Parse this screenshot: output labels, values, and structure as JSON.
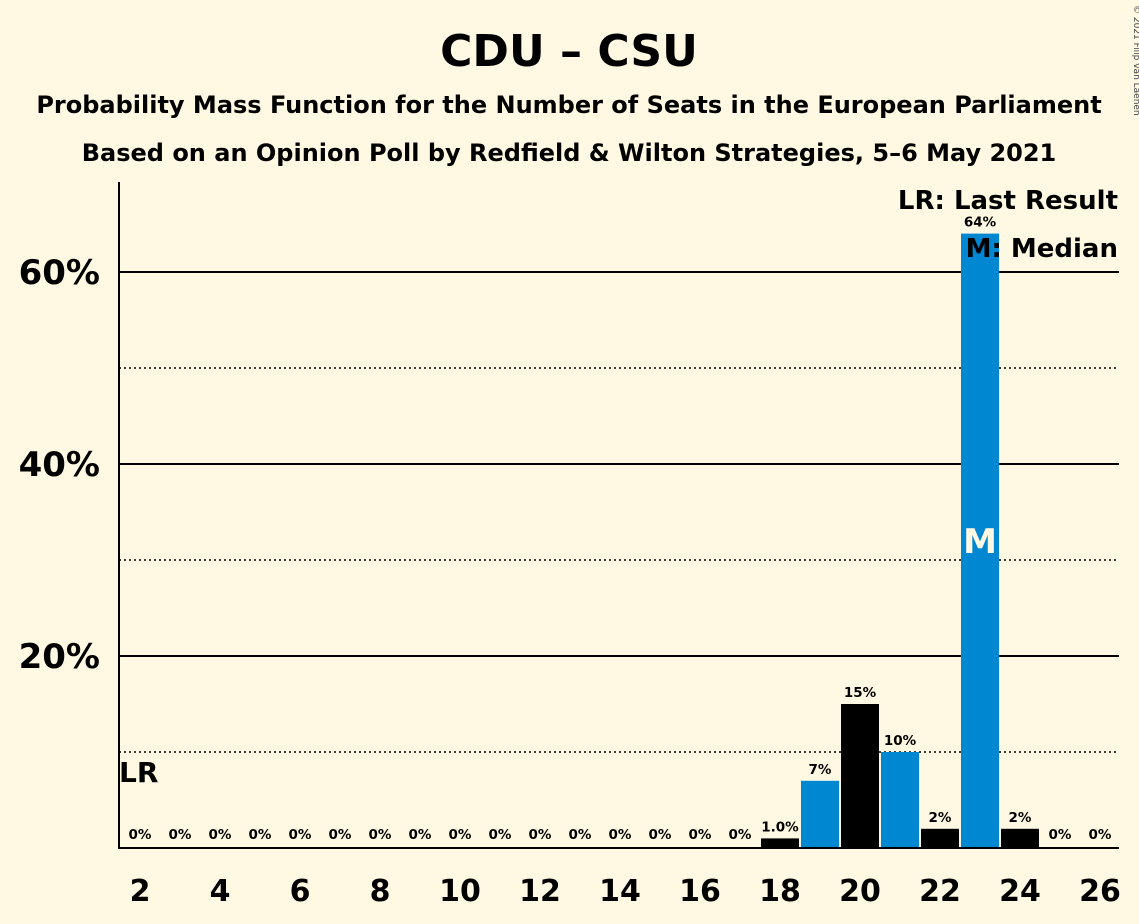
{
  "title": "CDU – CSU",
  "subtitle1": "Probability Mass Function for the Number of Seats in the European Parliament",
  "subtitle2": "Based on an Opinion Poll by Redfield & Wilton Strategies, 5–6 May 2021",
  "copyright": "© 2021 Filip van Laenen",
  "legend": {
    "last_result": "LR: Last Result",
    "median": "M: Median"
  },
  "lr_marker": "LR",
  "median_marker": "M",
  "colors": {
    "background": "#FFF9E3",
    "primary": "#0087D1",
    "secondary": "#000000"
  },
  "chart_data": {
    "type": "bar",
    "x": [
      2,
      3,
      4,
      5,
      6,
      7,
      8,
      9,
      10,
      11,
      12,
      13,
      14,
      15,
      16,
      17,
      18,
      19,
      20,
      21,
      22,
      23,
      24,
      25,
      26
    ],
    "values": [
      0,
      0,
      0,
      0,
      0,
      0,
      0,
      0,
      0,
      0,
      0,
      0,
      0,
      0,
      0,
      0,
      1.0,
      7,
      15,
      10,
      2,
      64,
      2,
      0,
      0
    ],
    "labels": [
      "0%",
      "0%",
      "0%",
      "0%",
      "0%",
      "0%",
      "0%",
      "0%",
      "0%",
      "0%",
      "0%",
      "0%",
      "0%",
      "0%",
      "0%",
      "0%",
      "1.0%",
      "7%",
      "15%",
      "10%",
      "2%",
      "64%",
      "2%",
      "0%",
      "0%"
    ],
    "x_tick_labels": [
      "2",
      "4",
      "6",
      "8",
      "10",
      "12",
      "14",
      "16",
      "18",
      "20",
      "22",
      "24",
      "26"
    ],
    "y_tick_labels": [
      "20%",
      "40%",
      "60%"
    ],
    "ylim": [
      0,
      69
    ],
    "last_result": 2,
    "median": 23,
    "grid": "solid major lines at 20% steps, dotted minor lines at 10% steps"
  }
}
